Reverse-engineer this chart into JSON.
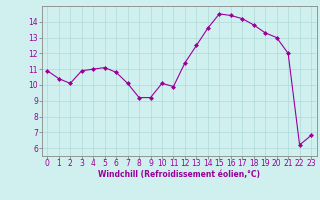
{
  "x": [
    0,
    1,
    2,
    3,
    4,
    5,
    6,
    7,
    8,
    9,
    10,
    11,
    12,
    13,
    14,
    15,
    16,
    17,
    18,
    19,
    20,
    21,
    22,
    23
  ],
  "y": [
    10.9,
    10.4,
    10.1,
    10.9,
    11.0,
    11.1,
    10.8,
    10.1,
    9.2,
    9.2,
    10.1,
    9.9,
    11.4,
    12.5,
    13.6,
    14.5,
    14.4,
    14.2,
    13.8,
    13.3,
    13.0,
    12.0,
    6.2,
    6.8
  ],
  "line_color": "#990099",
  "marker": "D",
  "marker_size": 2.0,
  "bg_color": "#d0f0f0",
  "grid_color": "#b0d8d8",
  "spine_color": "#888888",
  "xlabel": "Windchill (Refroidissement éolien,°C)",
  "xlabel_color": "#990099",
  "tick_color": "#990099",
  "ylim": [
    5.5,
    15.0
  ],
  "xlim": [
    -0.5,
    23.5
  ],
  "yticks": [
    6,
    7,
    8,
    9,
    10,
    11,
    12,
    13,
    14
  ],
  "xticks": [
    0,
    1,
    2,
    3,
    4,
    5,
    6,
    7,
    8,
    9,
    10,
    11,
    12,
    13,
    14,
    15,
    16,
    17,
    18,
    19,
    20,
    21,
    22,
    23
  ],
  "xlabel_fontsize": 5.5,
  "tick_fontsize": 5.5
}
